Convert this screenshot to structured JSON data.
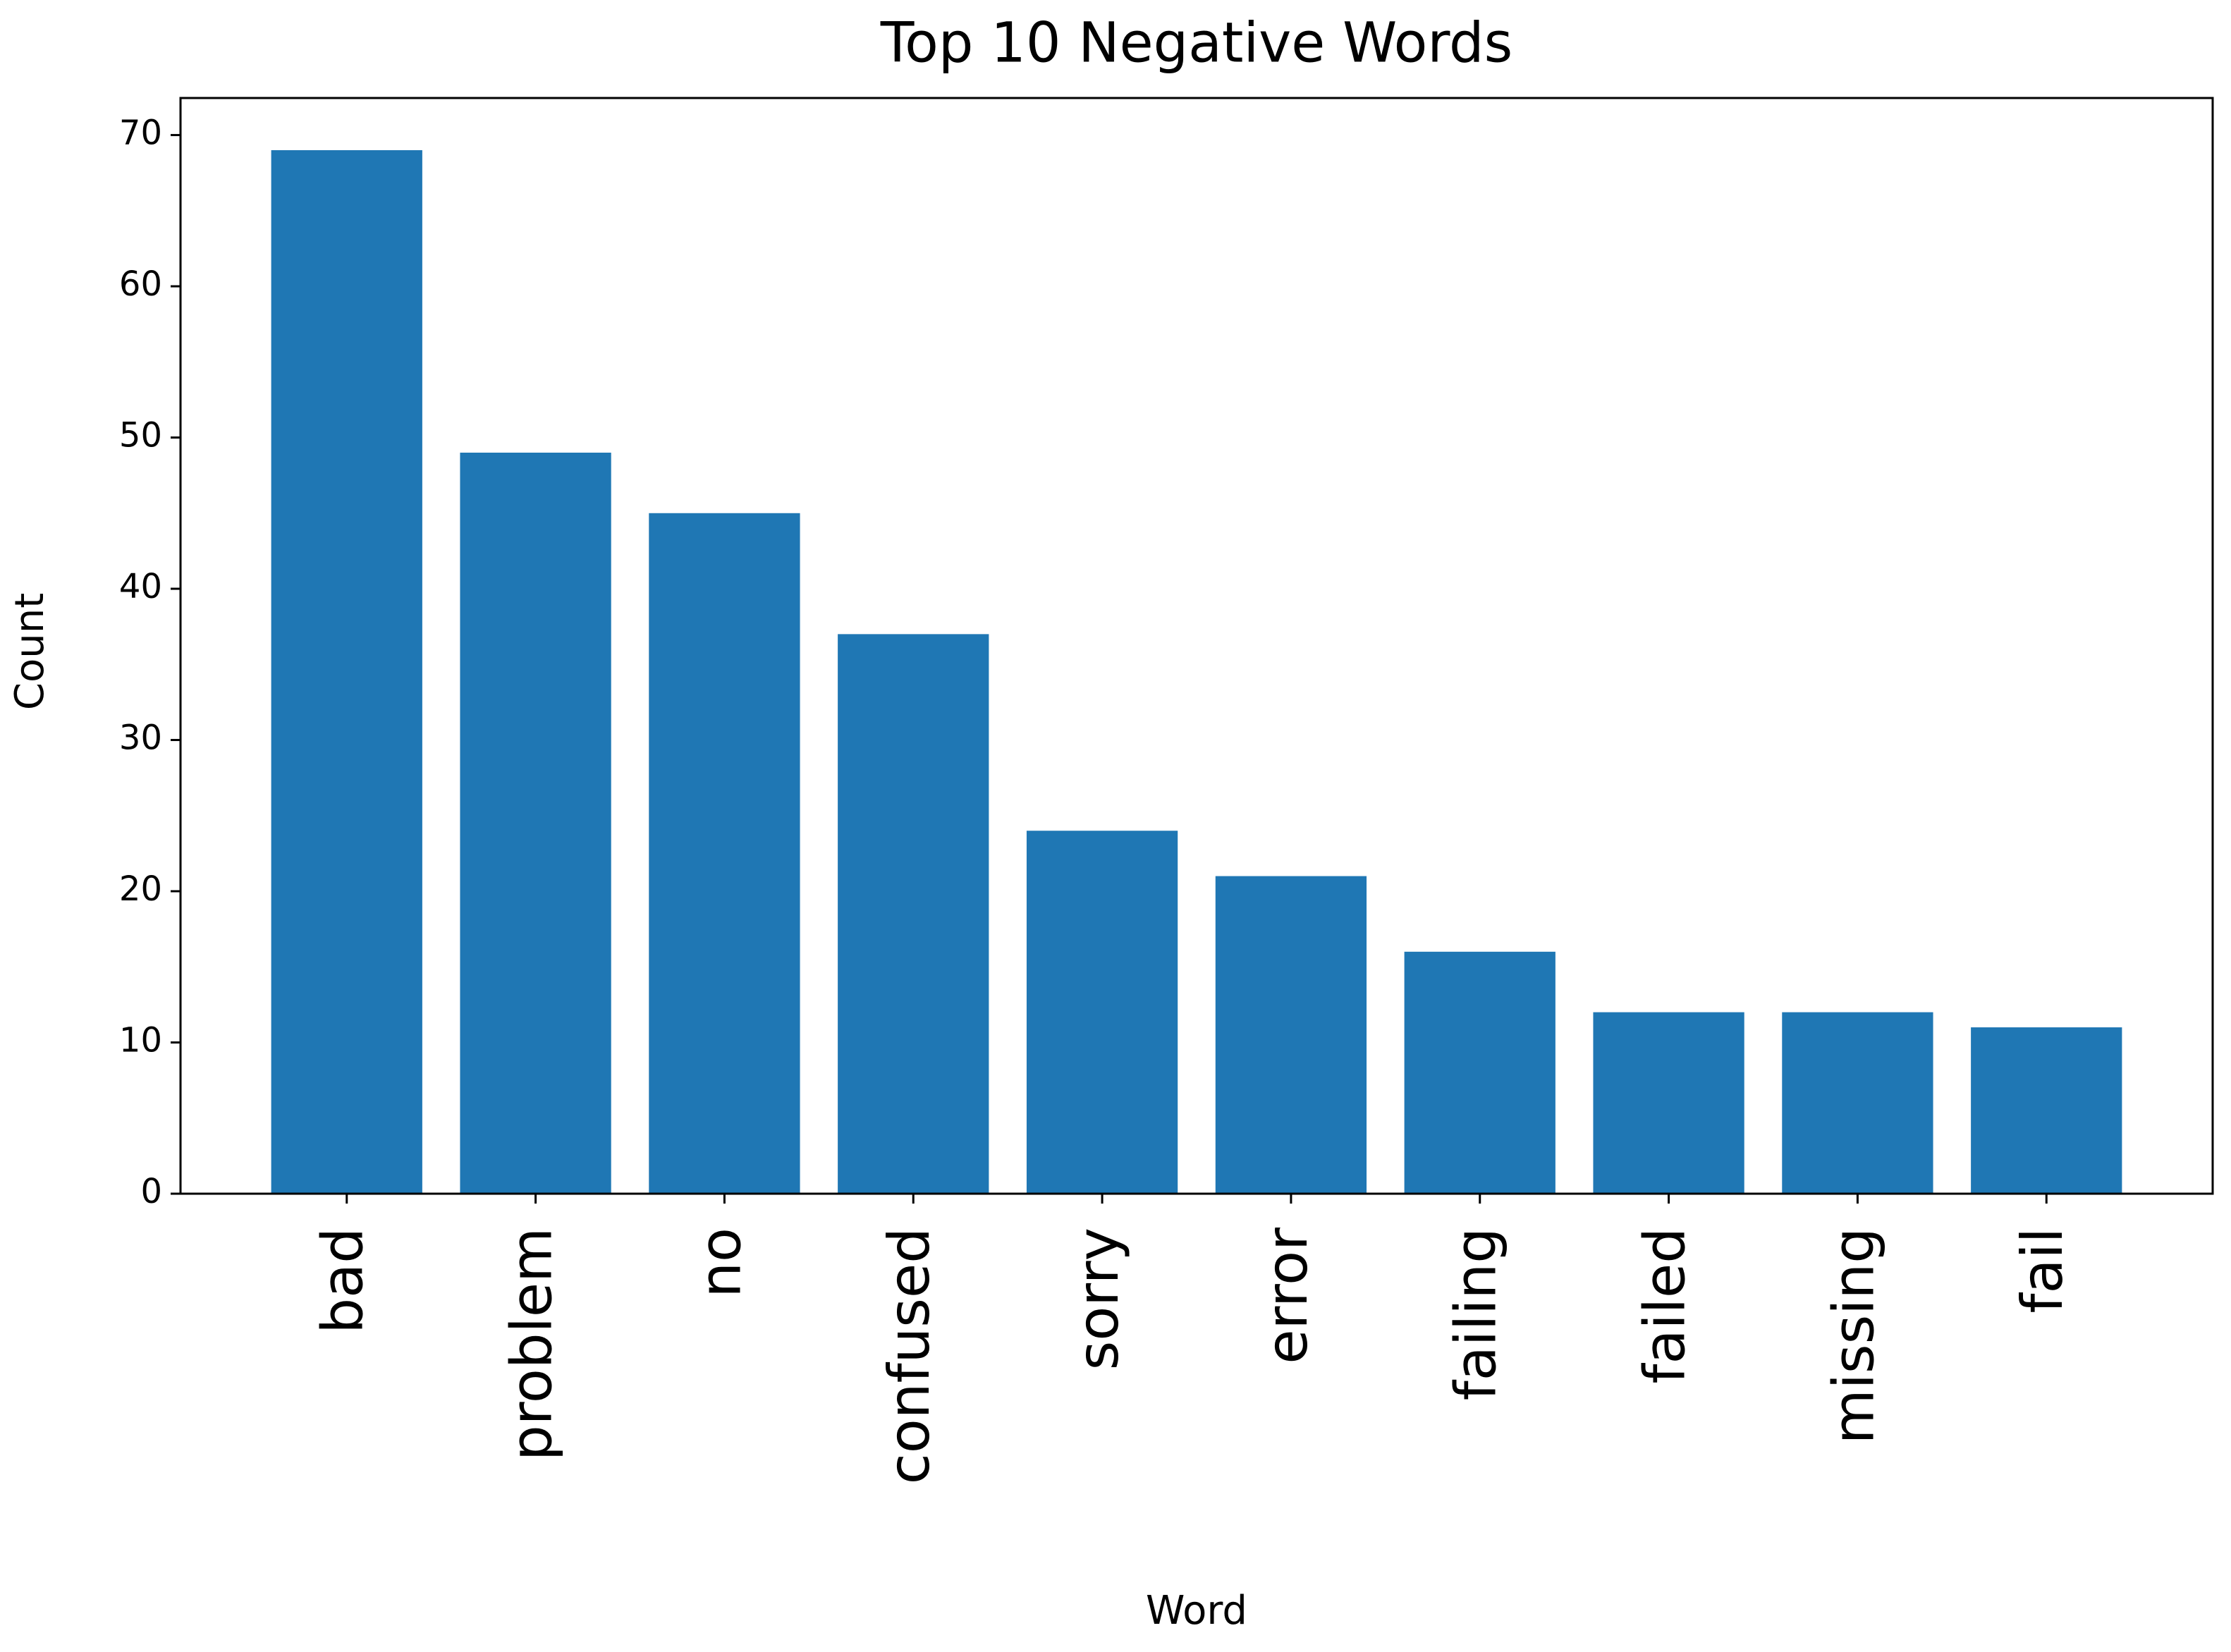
{
  "chart_data": {
    "type": "bar",
    "title": "Top 10 Negative Words",
    "x_label": "Word",
    "y_label": "Count",
    "categories": [
      "bad",
      "problem",
      "no",
      "confused",
      "sorry",
      "error",
      "failing",
      "failed",
      "missing",
      "fail"
    ],
    "values": [
      69,
      49,
      45,
      37,
      24,
      21,
      16,
      12,
      12,
      11
    ],
    "color": "#1f77b4",
    "ylim": [
      0,
      72.45
    ],
    "yticks": [
      0,
      10,
      20,
      30,
      40,
      50,
      60,
      70
    ],
    "grid": false
  }
}
